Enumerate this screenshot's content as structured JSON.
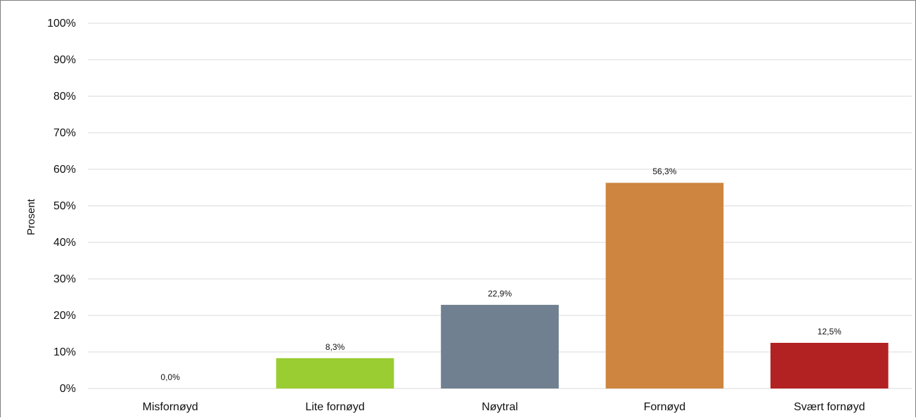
{
  "chart_data": {
    "type": "bar",
    "title": "",
    "xlabel": "",
    "ylabel": "Prosent",
    "categories": [
      "Misfornøyd",
      "Lite fornøyd",
      "Nøytral",
      "Fornøyd",
      "Svært fornøyd"
    ],
    "values": [
      0.0,
      8.3,
      22.9,
      56.3,
      12.5
    ],
    "data_labels": [
      "0,0%",
      "8,3%",
      "22,9%",
      "56,3%",
      "12,5%"
    ],
    "colors": [
      "#9acd32",
      "#9acd32",
      "#708090",
      "#cd853f",
      "#b22222"
    ],
    "ylim": [
      0,
      100
    ],
    "yticks": [
      "0%",
      "10%",
      "20%",
      "30%",
      "40%",
      "50%",
      "60%",
      "70%",
      "80%",
      "90%",
      "100%"
    ],
    "grid": true,
    "legend": "none"
  }
}
